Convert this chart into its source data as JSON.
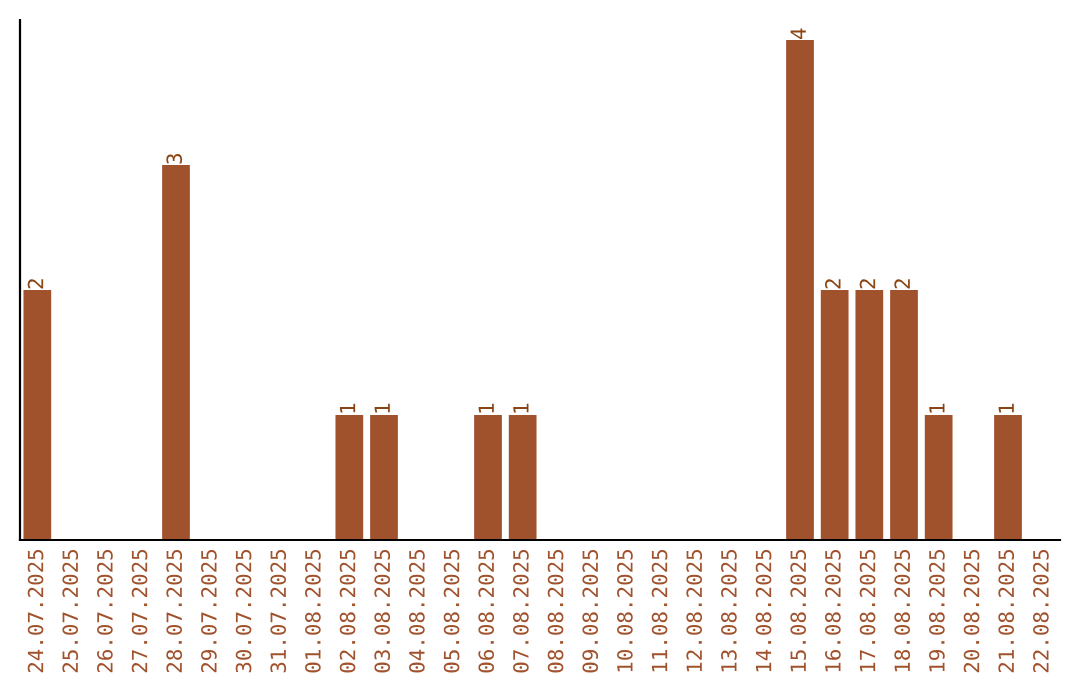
{
  "chart_data": {
    "type": "bar",
    "categories": [
      "24.07.2025",
      "25.07.2025",
      "26.07.2025",
      "27.07.2025",
      "28.07.2025",
      "29.07.2025",
      "30.07.2025",
      "31.07.2025",
      "01.08.2025",
      "02.08.2025",
      "03.08.2025",
      "04.08.2025",
      "05.08.2025",
      "06.08.2025",
      "07.08.2025",
      "08.08.2025",
      "09.08.2025",
      "10.08.2025",
      "11.08.2025",
      "12.08.2025",
      "13.08.2025",
      "14.08.2025",
      "15.08.2025",
      "16.08.2025",
      "17.08.2025",
      "18.08.2025",
      "19.08.2025",
      "20.08.2025",
      "21.08.2025",
      "22.08.2025"
    ],
    "values": [
      2,
      0,
      0,
      0,
      3,
      0,
      0,
      0,
      0,
      1,
      1,
      0,
      0,
      1,
      1,
      0,
      0,
      0,
      0,
      0,
      0,
      0,
      4,
      2,
      2,
      2,
      1,
      0,
      1,
      0
    ],
    "value_labels": [
      "2",
      null,
      null,
      null,
      "3",
      null,
      null,
      null,
      null,
      "1",
      "1",
      null,
      null,
      "1",
      "1",
      null,
      null,
      null,
      null,
      null,
      null,
      null,
      "4",
      "2",
      "2",
      "2",
      "1",
      null,
      "1",
      null
    ],
    "color": "#a0522d",
    "tick_labels": "x",
    "grid": false,
    "legend": false
  }
}
